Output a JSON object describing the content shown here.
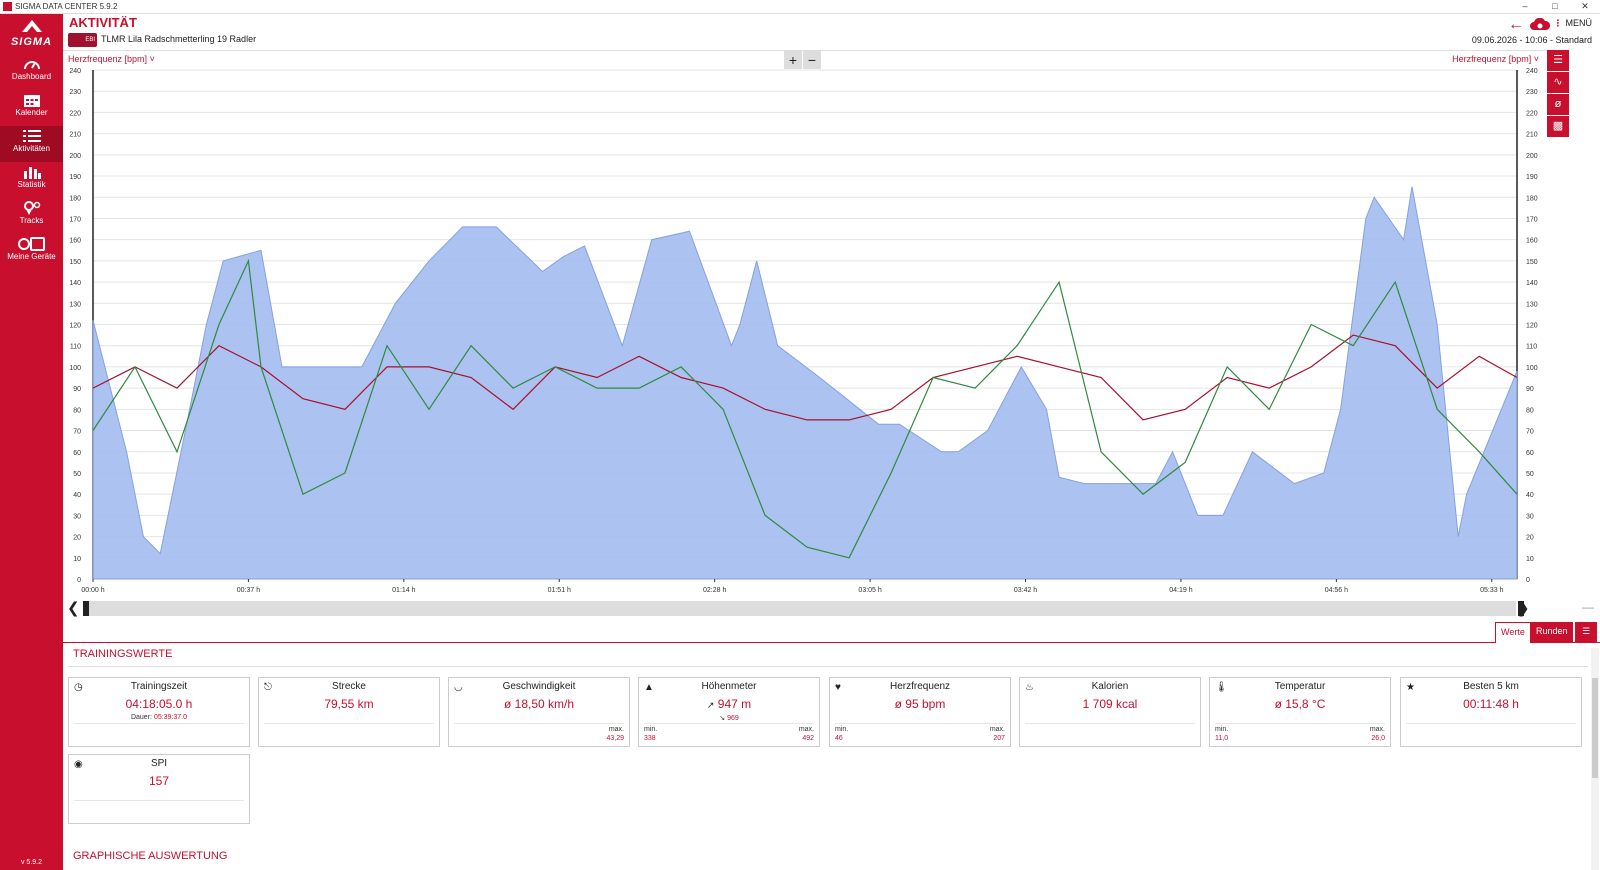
{
  "window": {
    "title": "SIGMA DATA CENTER 5.9.2",
    "controls": [
      "–",
      "□",
      "✕"
    ]
  },
  "sidebar": {
    "logo": "SIGMA",
    "items": [
      {
        "label": "Dashboard",
        "icon": "speedometer-icon"
      },
      {
        "label": "Kalender",
        "icon": "calendar-icon"
      },
      {
        "label": "Aktivitäten",
        "icon": "list-icon",
        "active": true
      },
      {
        "label": "Statistik",
        "icon": "bar-chart-icon"
      },
      {
        "label": "Tracks",
        "icon": "map-pin-icon"
      },
      {
        "label": "Meine Geräte",
        "icon": "devices-icon"
      }
    ],
    "version": "v 5.9.2"
  },
  "header": {
    "title": "AKTIVITÄT",
    "badge": "EBI",
    "activity_name": "TLMR Lila Radschmetterling 19 Radler",
    "menu_label": "MENÜ",
    "datetime": "09.06.2026 - 10:06 - Standard"
  },
  "chart": {
    "metric_left": "Herzfrequenz [bpm]",
    "metric_right": "Herzfrequenz [bpm]",
    "zoom_in": "+",
    "zoom_out": "−",
    "accent": "#c8102e"
  },
  "chart_data": {
    "type": "line",
    "title": "",
    "ylabel": "Herzfrequenz [bpm]",
    "ylim": [
      0,
      240
    ],
    "yticks": [
      0,
      10,
      20,
      30,
      40,
      50,
      60,
      70,
      80,
      90,
      100,
      110,
      120,
      130,
      140,
      150,
      160,
      170,
      180,
      190,
      200,
      210,
      220,
      230,
      240
    ],
    "x_tick_labels": [
      "00:00 h",
      "00:37 h",
      "01:14 h",
      "01:51 h",
      "02:28 h",
      "03:05 h",
      "03:42 h",
      "04:19 h",
      "04:56 h",
      "05:33 h"
    ],
    "x_tick_minutes": [
      0,
      37,
      74,
      111,
      148,
      185,
      222,
      259,
      296,
      333
    ],
    "xlim_minutes": [
      0,
      339
    ],
    "grid": true,
    "series": [
      {
        "color": "#a8bff0",
        "x": [
          0,
          8,
          12,
          16,
          22,
          27,
          31,
          40,
          45,
          57,
          64,
          72,
          80,
          88,
          96,
          107,
          112,
          117,
          126,
          133,
          142,
          152,
          154,
          158,
          163,
          173,
          187,
          192,
          202,
          206,
          213,
          221,
          227,
          230,
          236,
          253,
          257,
          263,
          269,
          276,
          286,
          293,
          297,
          303,
          305,
          312,
          314,
          320,
          325,
          327,
          339
        ],
        "y": [
          122,
          60,
          20,
          12,
          70,
          120,
          150,
          155,
          100,
          100,
          100,
          130,
          150,
          166,
          166,
          145,
          152,
          157,
          110,
          160,
          164,
          110,
          120,
          150,
          110,
          95,
          73,
          73,
          60,
          60,
          70,
          100,
          80,
          48,
          45,
          45,
          60,
          30,
          30,
          60,
          45,
          50,
          80,
          170,
          180,
          160,
          185,
          120,
          20,
          40,
          98
        ]
      },
      {
        "color": "#a8102e",
        "x": [
          0,
          10,
          20,
          30,
          40,
          50,
          60,
          70,
          80,
          90,
          100,
          110,
          120,
          130,
          140,
          150,
          160,
          170,
          180,
          190,
          200,
          210,
          220,
          230,
          240,
          250,
          260,
          270,
          280,
          290,
          300,
          310,
          320,
          330,
          339
        ],
        "y": [
          90,
          100,
          90,
          110,
          100,
          85,
          80,
          100,
          100,
          95,
          80,
          100,
          95,
          105,
          95,
          90,
          80,
          75,
          75,
          80,
          95,
          100,
          105,
          100,
          95,
          75,
          80,
          95,
          90,
          100,
          115,
          110,
          90,
          105,
          95
        ]
      },
      {
        "color": "#2e8b3e",
        "x": [
          0,
          10,
          20,
          30,
          37,
          40,
          50,
          60,
          70,
          80,
          90,
          100,
          110,
          120,
          130,
          140,
          150,
          160,
          170,
          180,
          190,
          200,
          210,
          220,
          230,
          240,
          250,
          260,
          270,
          280,
          290,
          300,
          310,
          320,
          330,
          339
        ],
        "y": [
          70,
          100,
          60,
          120,
          150,
          100,
          40,
          50,
          110,
          80,
          110,
          90,
          100,
          90,
          90,
          100,
          80,
          30,
          15,
          10,
          50,
          95,
          90,
          110,
          140,
          60,
          40,
          55,
          100,
          80,
          120,
          110,
          140,
          80,
          60,
          40
        ]
      }
    ]
  },
  "tabs": {
    "werte": "Werte",
    "runden": "Runden"
  },
  "training": {
    "section_title": "TRAININGSWERTE",
    "cards": [
      {
        "name": "Trainingszeit",
        "value": "04:18:05.0 h",
        "icon": "clock-icon",
        "sub_label": "Dauer:",
        "sub_value": "05:39:37.0"
      },
      {
        "name": "Strecke",
        "value": "79,55 km",
        "icon": "road-sign-icon"
      },
      {
        "name": "Geschwindigkeit",
        "value": "ø 18,50 km/h",
        "icon": "gauge-icon",
        "max_label": "max.",
        "max": "43,29"
      },
      {
        "name": "Höhenmeter",
        "value": "947 m",
        "icon": "mountain-icon",
        "down": "969",
        "min_label": "min.",
        "min": "338",
        "max_label": "max.",
        "max": "492"
      },
      {
        "name": "Herzfrequenz",
        "value": "ø 95 bpm",
        "icon": "heart-icon",
        "min_label": "min.",
        "min": "46",
        "max_label": "max.",
        "max": "207"
      },
      {
        "name": "Kalorien",
        "value": "1 709 kcal",
        "icon": "flame-icon"
      },
      {
        "name": "Temperatur",
        "value": "ø 15,8 °C",
        "icon": "thermometer-icon",
        "min_label": "min.",
        "min": "11,0",
        "max_label": "max.",
        "max": "26,0"
      },
      {
        "name": "Besten 5 km",
        "value": "00:11:48 h",
        "icon": "star-icon"
      },
      {
        "name": "SPI",
        "value": "157",
        "icon": "spi-icon"
      }
    ]
  },
  "graphic": {
    "section_title": "GRAPHISCHE AUSWERTUNG"
  }
}
